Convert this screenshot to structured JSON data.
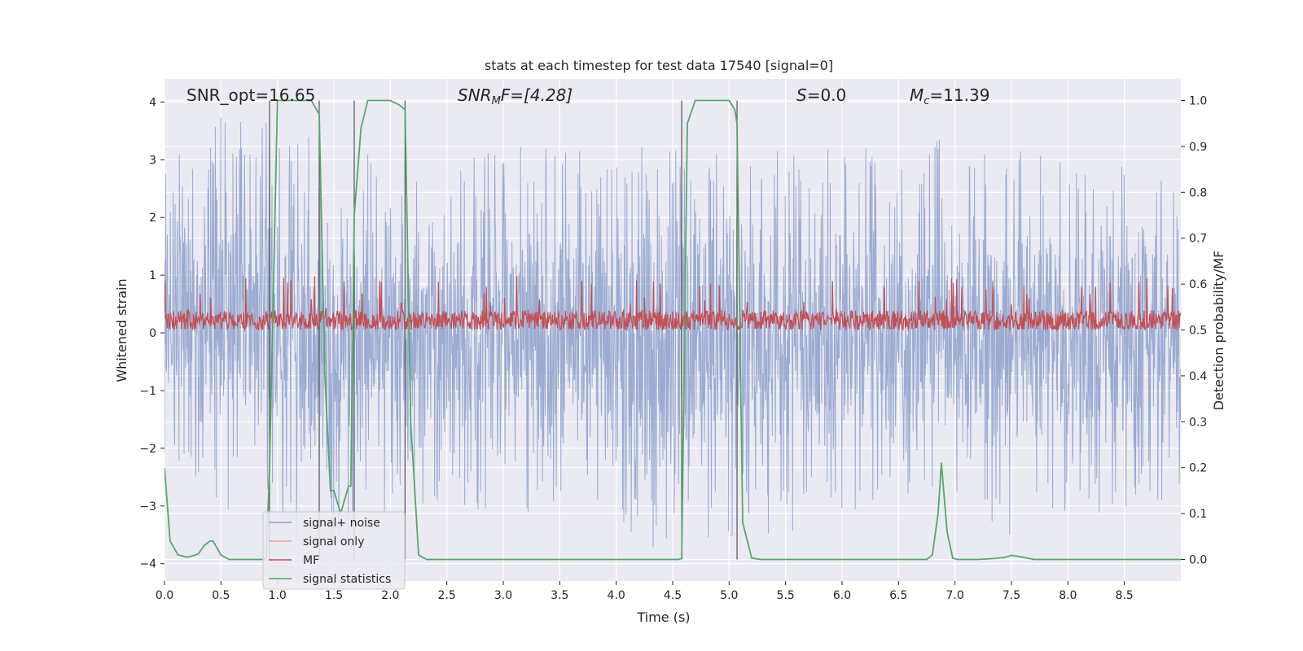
{
  "chart_data": {
    "type": "line",
    "title": "stats at each timestep for test data 17540 [signal=0]",
    "xlabel": "Time (s)",
    "ylabel_left": "Whitened strain",
    "ylabel_right": "Detection probability/MF",
    "xlim": [
      0.0,
      9.0
    ],
    "ylim_left": [
      -4.3,
      4.4
    ],
    "ylim_right": [
      -0.047,
      1.047
    ],
    "x_ticks": [
      0.0,
      0.5,
      1.0,
      1.5,
      2.0,
      2.5,
      3.0,
      3.5,
      4.0,
      4.5,
      5.0,
      5.5,
      6.0,
      6.5,
      7.0,
      7.5,
      8.0,
      8.5
    ],
    "x_tick_labels": [
      "0.0",
      "0.5",
      "1.0",
      "1.5",
      "2.0",
      "2.5",
      "3.0",
      "3.5",
      "4.0",
      "4.5",
      "5.0",
      "5.5",
      "6.0",
      "6.5",
      "7.0",
      "7.5",
      "8.0",
      "8.5"
    ],
    "y_left_ticks": [
      4,
      3,
      2,
      1,
      0,
      -1,
      -2,
      -3,
      -4
    ],
    "y_left_tick_labels": [
      "4",
      "3",
      "2",
      "1",
      "0",
      "−1",
      "−2",
      "−3",
      "−4"
    ],
    "y_right_ticks": [
      1.0,
      0.9,
      0.8,
      0.7,
      0.6,
      0.5,
      0.4,
      0.3,
      0.2,
      0.1,
      0.0
    ],
    "y_right_tick_labels": [
      "1.0",
      "0.9",
      "0.8",
      "0.7",
      "0.6",
      "0.5",
      "0.4",
      "0.3",
      "0.2",
      "0.1",
      "0.0"
    ],
    "annotations": {
      "snr_opt": "SNR_opt=16.65",
      "snr_mf_base": "SNR",
      "snr_mf_sub": "M",
      "snr_mf_rest": "F=[4.28]",
      "s_var": "S",
      "s_rest": "=0.0",
      "mc_var": "M",
      "mc_sub": "c",
      "mc_rest": "=11.39"
    },
    "legend": {
      "placement": "lower-left",
      "entries": [
        {
          "label": "signal+ noise",
          "color": "#8da0cb"
        },
        {
          "label": "signal only",
          "color": "#e9a58a"
        },
        {
          "label": "MF",
          "color": "#c44e52"
        },
        {
          "label": "signal statistics",
          "color": "#55a868"
        }
      ]
    },
    "series": [
      {
        "name": "signal+ noise",
        "axis": "left",
        "color": "#8da0cb",
        "envelope_x": [
          0.0,
          0.5,
          1.0,
          1.5,
          2.0,
          2.5,
          3.0,
          3.5,
          4.0,
          4.5,
          5.0,
          5.5,
          6.0,
          6.5,
          7.0,
          7.5,
          8.0,
          8.5,
          9.0
        ],
        "envelope_max": [
          2.9,
          4.0,
          4.0,
          3.1,
          3.1,
          3.0,
          3.3,
          3.2,
          3.2,
          3.4,
          3.4,
          3.3,
          3.2,
          3.3,
          3.4,
          3.2,
          3.2,
          2.9,
          2.9
        ],
        "envelope_min": [
          -2.4,
          -3.0,
          -3.7,
          -3.7,
          -3.2,
          -3.1,
          -3.3,
          -3.4,
          -3.5,
          -3.9,
          -3.6,
          -3.5,
          -3.2,
          -3.3,
          -3.5,
          -3.5,
          -3.4,
          -3.1,
          -3.0
        ]
      },
      {
        "name": "MF",
        "axis": "right",
        "color": "#c44e52",
        "baseline": 0.52,
        "peak_max": 0.62,
        "trough_min": 0.5
      },
      {
        "name": "signal statistics",
        "axis": "right",
        "color": "#55a868",
        "x": [
          0.0,
          0.05,
          0.12,
          0.2,
          0.25,
          0.3,
          0.35,
          0.4,
          0.43,
          0.5,
          0.57,
          0.7,
          0.85,
          0.9,
          0.93,
          1.0,
          1.03,
          1.3,
          1.37,
          1.42,
          1.47,
          1.5,
          1.56,
          1.63,
          1.65,
          1.68,
          1.74,
          1.8,
          1.88,
          2.0,
          2.08,
          2.13,
          2.18,
          2.25,
          2.32,
          2.5,
          3.5,
          4.0,
          4.5,
          4.55,
          4.58,
          4.63,
          4.7,
          4.8,
          5.0,
          5.05,
          5.07,
          5.12,
          5.2,
          5.28,
          5.5,
          6.0,
          6.5,
          6.75,
          6.8,
          6.85,
          6.88,
          6.93,
          6.98,
          7.02,
          7.2,
          7.35,
          7.45,
          7.5,
          7.6,
          7.7,
          8.0,
          8.5,
          9.0
        ],
        "y": [
          0.2,
          0.04,
          0.01,
          0.005,
          0.008,
          0.012,
          0.03,
          0.04,
          0.04,
          0.01,
          0.0,
          0.0,
          0.0,
          0.0,
          0.2,
          1.0,
          1.0,
          1.0,
          0.97,
          0.4,
          0.15,
          0.15,
          0.1,
          0.16,
          0.16,
          0.75,
          0.94,
          1.0,
          1.0,
          1.0,
          0.99,
          0.98,
          0.3,
          0.01,
          0.0,
          0.0,
          0.0,
          0.0,
          0.0,
          0.0,
          0.002,
          0.95,
          1.0,
          1.0,
          1.0,
          0.98,
          0.95,
          0.08,
          0.003,
          0.0,
          0.0,
          0.0,
          0.0,
          0.0,
          0.01,
          0.1,
          0.21,
          0.06,
          0.003,
          0.0,
          0.0,
          0.002,
          0.005,
          0.009,
          0.005,
          0.0,
          0.0,
          0.0,
          0.0
        ]
      }
    ],
    "vertical_markers_x": [
      0.93,
      1.37,
      1.68,
      2.13,
      4.58,
      5.07
    ]
  }
}
